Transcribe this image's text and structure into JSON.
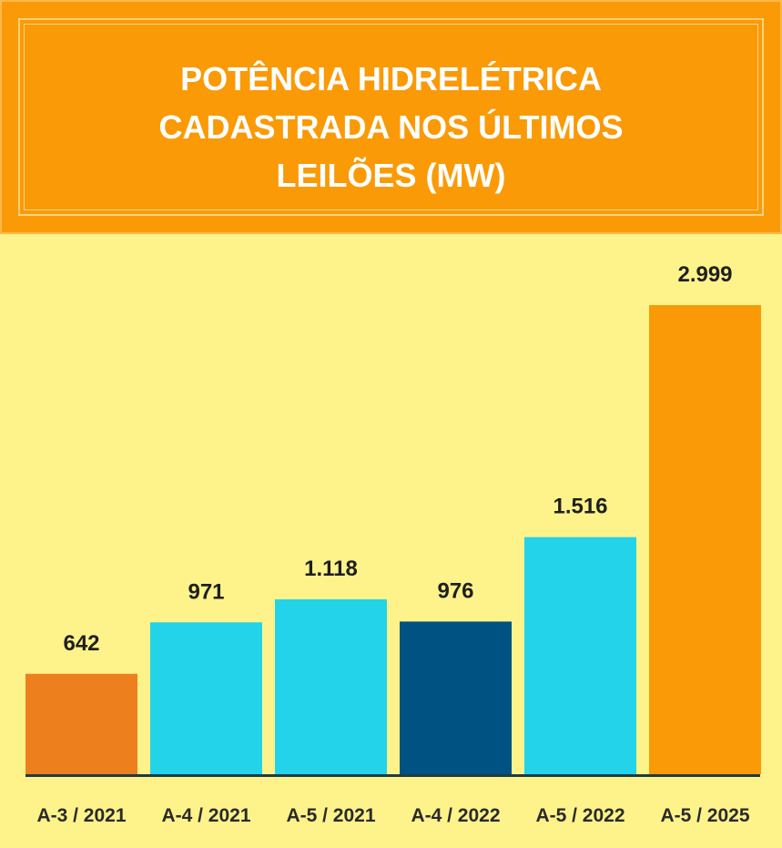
{
  "header": {
    "title_lines": [
      "POTÊNCIA HIDRELÉTRICA",
      "CADASTRADA NOS ÚLTIMOS",
      "LEILÕES (MW)"
    ]
  },
  "colors": {
    "background": "#fdf38a",
    "header_background": "#fa9a07",
    "header_frame": "#fbd280",
    "axis_line": "#1e3a4a",
    "text": "#1f1f1f"
  },
  "chart_data": {
    "type": "bar",
    "title": "POTÊNCIA HIDRELÉTRICA CADASTRADA NOS ÚLTIMOS LEILÕES (MW)",
    "categories": [
      "A-3 / 2021",
      "A-4 / 2021",
      "A-5 / 2021",
      "A-4 / 2022",
      "A-5 / 2022",
      "A-5 / 2025"
    ],
    "values": [
      642,
      971,
      1118,
      976,
      1516,
      2999
    ],
    "value_labels": [
      "642",
      "971",
      "1.118",
      "976",
      "1.516",
      "2.999"
    ],
    "bar_colors": [
      "#ee7f1d",
      "#22d3ea",
      "#22d3ea",
      "#005282",
      "#22d3ea",
      "#fa9a07"
    ],
    "xlabel": "",
    "ylabel": "",
    "grid": false,
    "legend": "none"
  }
}
